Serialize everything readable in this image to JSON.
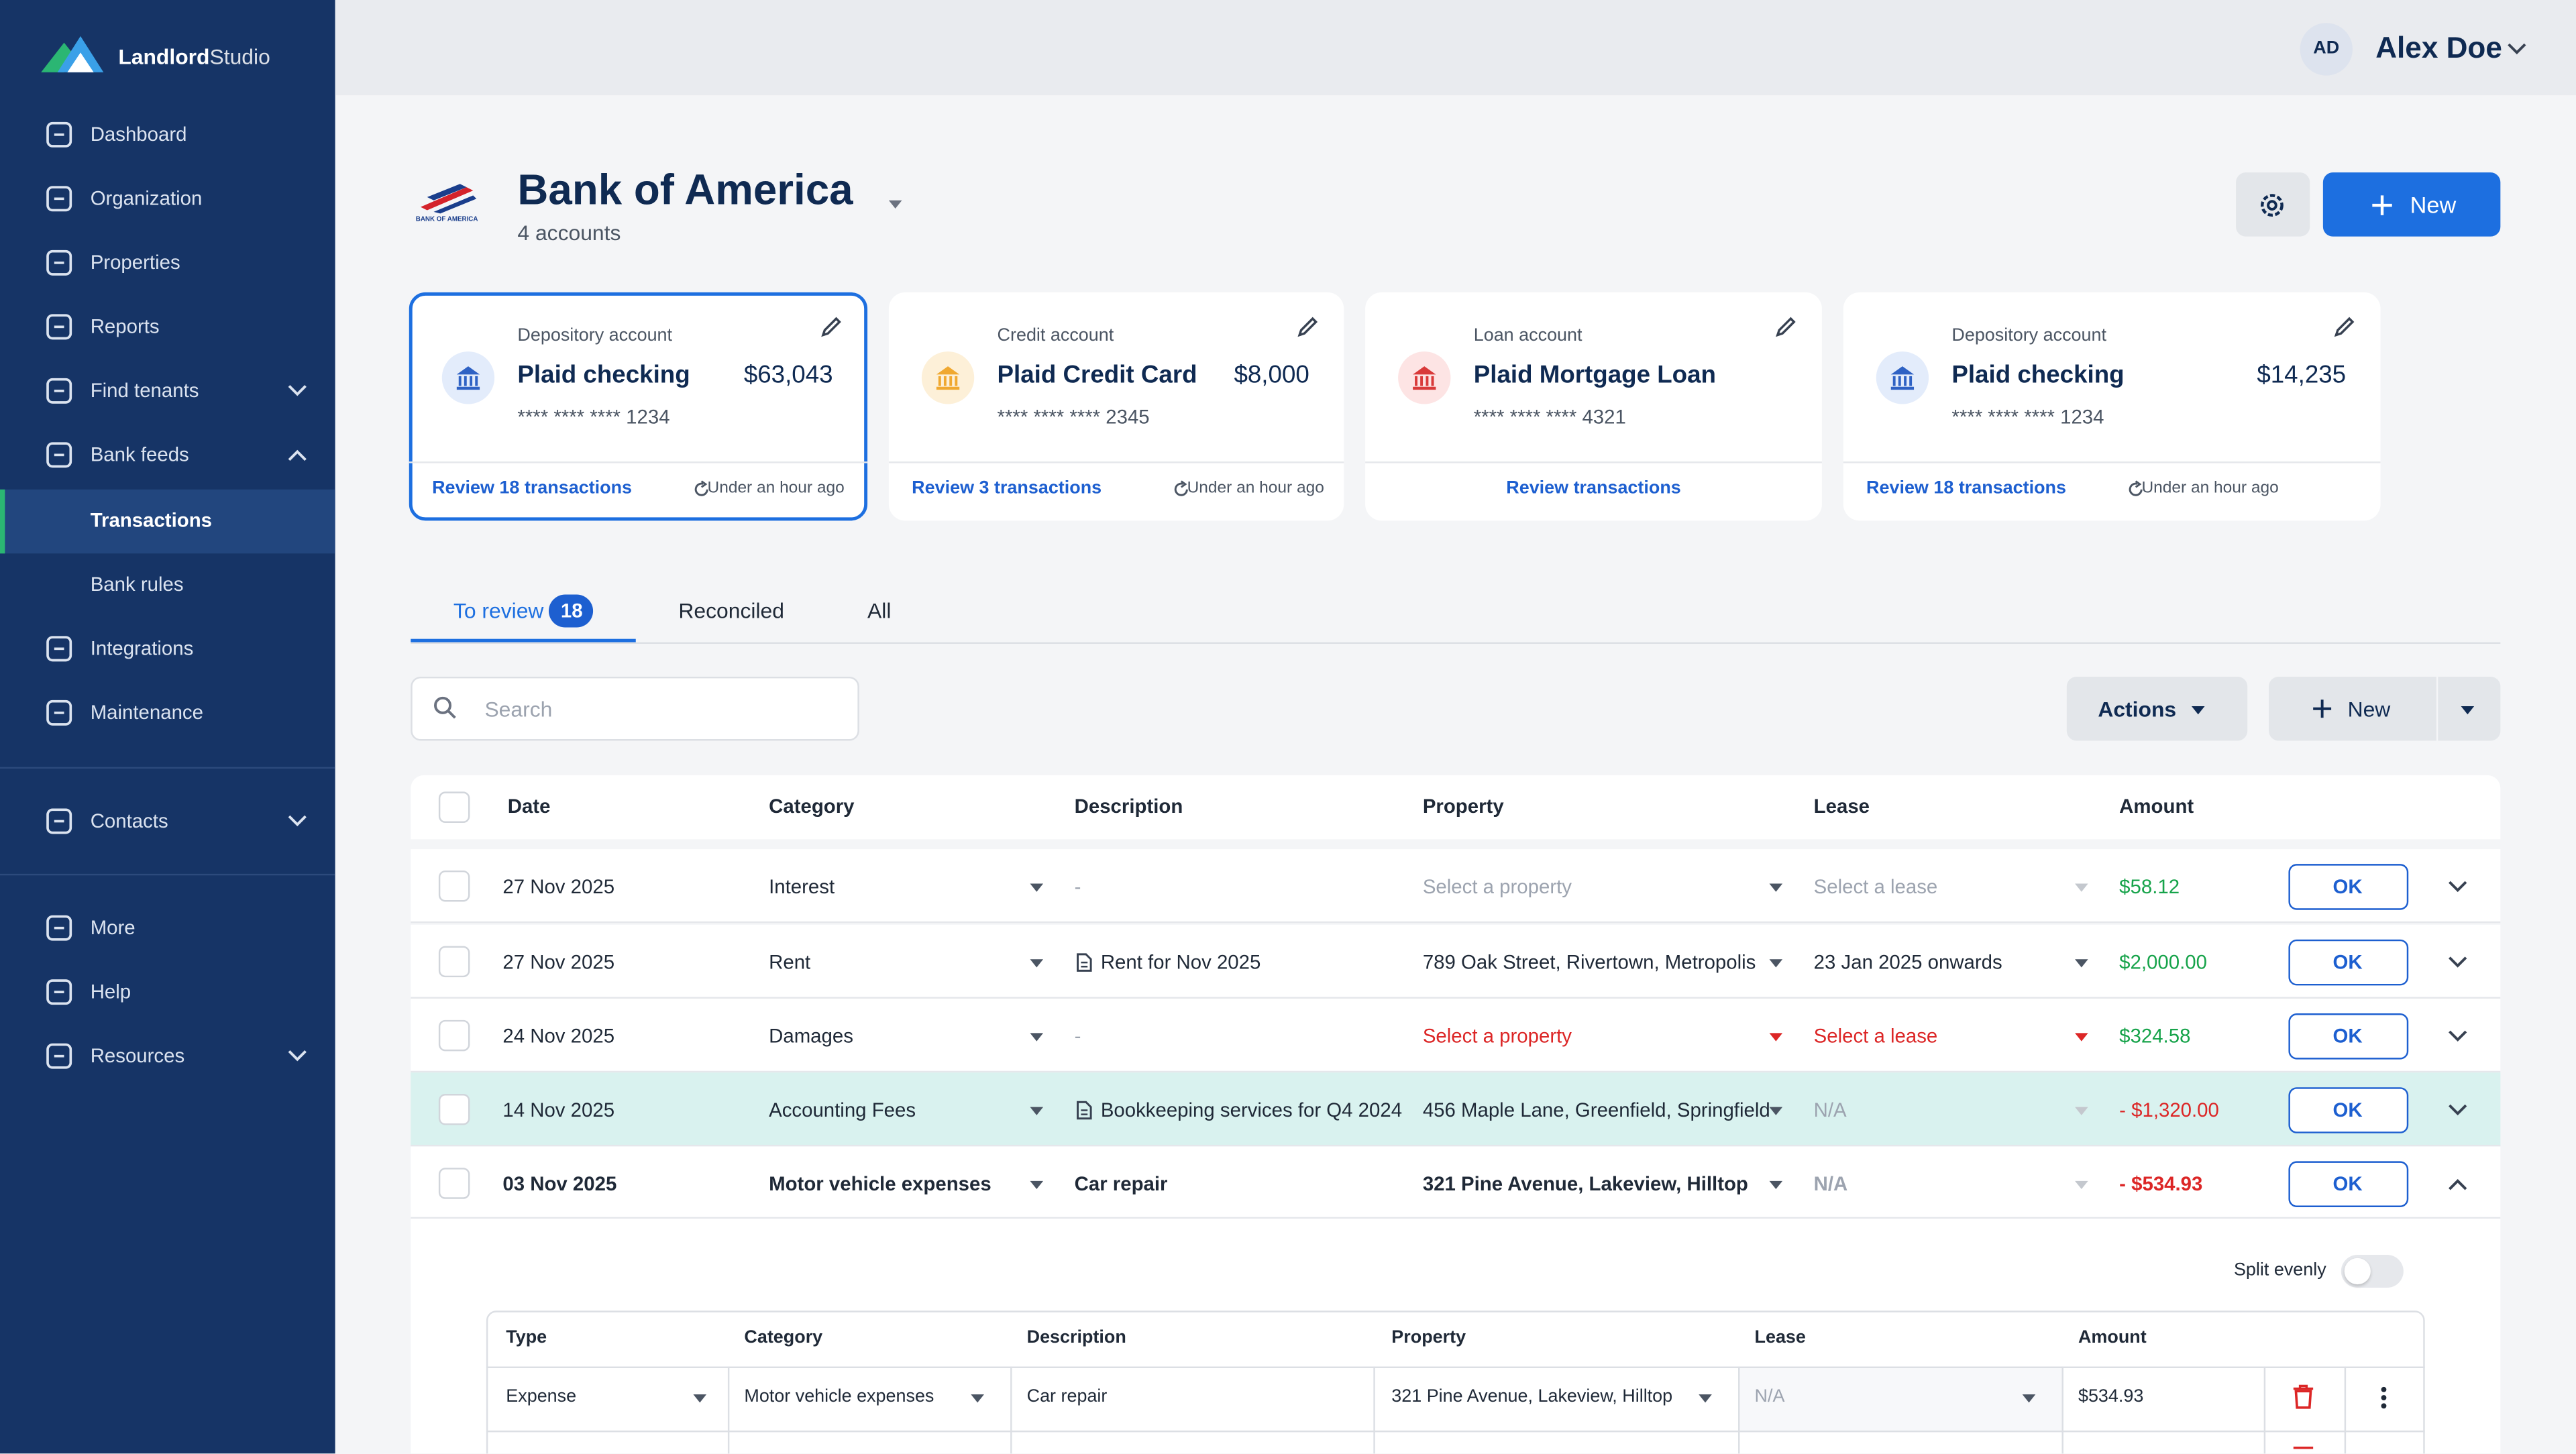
{
  "brand": {
    "name_bold": "Landlord",
    "name_light": "Studio"
  },
  "nav": [
    "Dashboard",
    "Organization",
    "Properties",
    "Reports",
    "Find tenants",
    "Bank feeds",
    "Transactions",
    "Bank rules",
    "Integrations",
    "Maintenance",
    "Contacts",
    "More",
    "Help",
    "Resources"
  ],
  "user": {
    "initials": "AD",
    "name": "Alex Doe"
  },
  "bank": {
    "logo_text": "BANK OF AMERICA",
    "name": "Bank of America",
    "subtitle": "4 accounts",
    "new_button": "New"
  },
  "accounts": [
    {
      "type": "Depository account",
      "name": "Plaid checking",
      "amount": "$63,043",
      "mask": "**** **** **** 1234",
      "review": "Review 18 transactions",
      "updated": "Under an hour ago"
    },
    {
      "type": "Credit account",
      "name": "Plaid Credit Card",
      "amount": "$8,000",
      "mask": "**** **** **** 2345",
      "review": "Review 3 transactions",
      "updated": "Under an hour ago"
    },
    {
      "type": "Loan account",
      "name": "Plaid Mortgage Loan",
      "mask": "**** **** **** 4321",
      "review": "Review transactions"
    },
    {
      "type": "Depository account",
      "name": "Plaid checking",
      "amount": "$14,235",
      "mask": "**** **** **** 1234",
      "review": "Review 18 transactions",
      "updated": "Under an hour ago"
    }
  ],
  "tabs": [
    {
      "label": "To review",
      "badge": "18"
    },
    {
      "label": "Reconciled"
    },
    {
      "label": "All"
    }
  ],
  "toolbar": {
    "search_placeholder": "Search",
    "actions": "Actions",
    "new": "New"
  },
  "table": {
    "headers": [
      "Date",
      "Category",
      "Description",
      "Property",
      "Lease",
      "Amount"
    ],
    "rows": [
      {
        "date": "27 Nov 2025",
        "category": "Interest",
        "description": "-",
        "property": "Select a property",
        "lease": "Select a lease",
        "amount": "$58.12",
        "action": "OK"
      },
      {
        "date": "27 Nov 2025",
        "category": "Rent",
        "description": "Rent for Nov 2025",
        "property": "789 Oak Street, Rivertown, Metropolis",
        "lease": "23 Jan 2025 onwards",
        "amount": "$2,000.00",
        "action": "OK"
      },
      {
        "date": "24 Nov 2025",
        "category": "Damages",
        "description": "-",
        "property": "Select a property",
        "lease": "Select a lease",
        "amount": "$324.58",
        "action": "OK"
      },
      {
        "date": "14 Nov 2025",
        "category": "Accounting Fees",
        "description": "Bookkeeping services for Q4 2024",
        "property": "456 Maple Lane, Greenfield, Springfield",
        "lease": "N/A",
        "amount": "- $1,320.00",
        "action": "OK"
      },
      {
        "date": "03 Nov 2025",
        "category": "Motor vehicle expenses",
        "description": "Car repair",
        "property": "321 Pine Avenue, Lakeview, Hilltop",
        "lease": "N/A",
        "amount": "- $534.93",
        "action": "OK"
      }
    ]
  },
  "split": {
    "label": "Split evenly",
    "headers": [
      "Type",
      "Category",
      "Description",
      "Property",
      "Lease",
      "Amount"
    ],
    "rows": [
      {
        "type": "Expense",
        "category": "Motor vehicle expenses",
        "description": "Car repair",
        "property": "321 Pine Avenue, Lakeview, Hilltop",
        "lease": "N/A",
        "amount": "$534.93"
      }
    ]
  }
}
